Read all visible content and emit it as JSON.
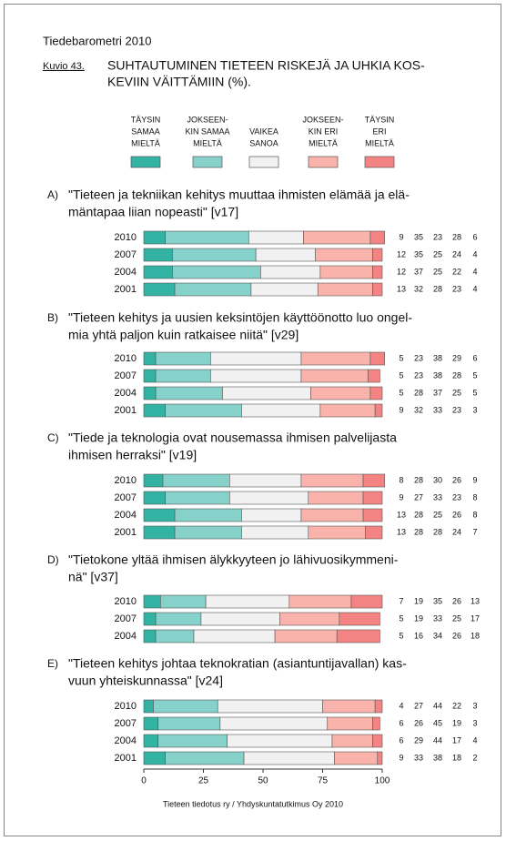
{
  "header": {
    "source_title": "Tiedebarometri 2010",
    "figure_label": "Kuvio 43."
  },
  "chart_data": {
    "type": "bar",
    "orientation": "horizontal",
    "stacked": true,
    "title": [
      "SUHTAUTUMINEN TIETEEN RISKEJÄ JA UHKIA KOS-",
      "KEVIIN VÄITTÄMIIN (%)."
    ],
    "series": [
      {
        "name": [
          "TÄYSIN",
          "SAMAA",
          "MIELTÄ"
        ],
        "color": "#33b3a3"
      },
      {
        "name": [
          "JOKSEEN-",
          "KIN SAMAA",
          "MIELTÄ"
        ],
        "color": "#86d1c9"
      },
      {
        "name": [
          "VAIKEA",
          "SANOA"
        ],
        "color": "#f1f1f1"
      },
      {
        "name": [
          "JOKSEEN-",
          "KIN ERI",
          "MIELTÄ"
        ],
        "color": "#f9b3aa"
      },
      {
        "name": [
          "TÄYSIN",
          "ERI",
          "MIELTÄ"
        ],
        "color": "#f38483"
      }
    ],
    "panels": [
      {
        "label": "A)",
        "question": [
          "\"Tieteen ja tekniikan kehitys muuttaa ihmisten elämää ja elä-",
          "mäntapaa liian nopeasti\" [v17]"
        ],
        "categories": [
          "2010",
          "2007",
          "2004",
          "2001"
        ],
        "values": [
          [
            9,
            35,
            23,
            28,
            6
          ],
          [
            12,
            35,
            25,
            24,
            4
          ],
          [
            12,
            37,
            25,
            22,
            4
          ],
          [
            13,
            32,
            28,
            23,
            4
          ]
        ]
      },
      {
        "label": "B)",
        "question": [
          "\"Tieteen kehitys ja uusien keksintöjen käyttöönotto luo ongel-",
          "mia yhtä paljon kuin ratkaisee niitä\" [v29]"
        ],
        "categories": [
          "2010",
          "2007",
          "2004",
          "2001"
        ],
        "values": [
          [
            5,
            23,
            38,
            29,
            6
          ],
          [
            5,
            23,
            38,
            28,
            5
          ],
          [
            5,
            28,
            37,
            25,
            5
          ],
          [
            9,
            32,
            33,
            23,
            3
          ]
        ]
      },
      {
        "label": "C)",
        "question": [
          "\"Tiede ja teknologia ovat nousemassa ihmisen palvelijasta",
          "ihmisen herraksi\" [v19]"
        ],
        "categories": [
          "2010",
          "2007",
          "2004",
          "2001"
        ],
        "values": [
          [
            8,
            28,
            30,
            26,
            9
          ],
          [
            9,
            27,
            33,
            23,
            8
          ],
          [
            13,
            28,
            25,
            26,
            8
          ],
          [
            13,
            28,
            28,
            24,
            7
          ]
        ]
      },
      {
        "label": "D)",
        "question": [
          "\"Tietokone yltää ihmisen älykkyyteen jo lähivuosikymmeni-",
          "nä\" [v37]"
        ],
        "categories": [
          "2010",
          "2007",
          "2004"
        ],
        "values": [
          [
            7,
            19,
            35,
            26,
            13
          ],
          [
            5,
            19,
            33,
            25,
            17
          ],
          [
            5,
            16,
            34,
            26,
            18
          ]
        ]
      },
      {
        "label": "E)",
        "question": [
          "\"Tieteen kehitys johtaa teknokratian (asiantuntijavallan) kas-",
          "vuun yhteiskunnassa\" [v24]"
        ],
        "categories": [
          "2010",
          "2007",
          "2004",
          "2001"
        ],
        "values": [
          [
            4,
            27,
            44,
            22,
            3
          ],
          [
            6,
            26,
            45,
            19,
            3
          ],
          [
            6,
            29,
            44,
            17,
            4
          ],
          [
            9,
            33,
            38,
            18,
            2
          ]
        ]
      }
    ],
    "xlim": [
      0,
      100
    ],
    "xticks": [
      0,
      25,
      50,
      75,
      100
    ],
    "footer": "Tieteen tiedotus ry / Yhdyskuntatutkimus Oy 2010"
  }
}
